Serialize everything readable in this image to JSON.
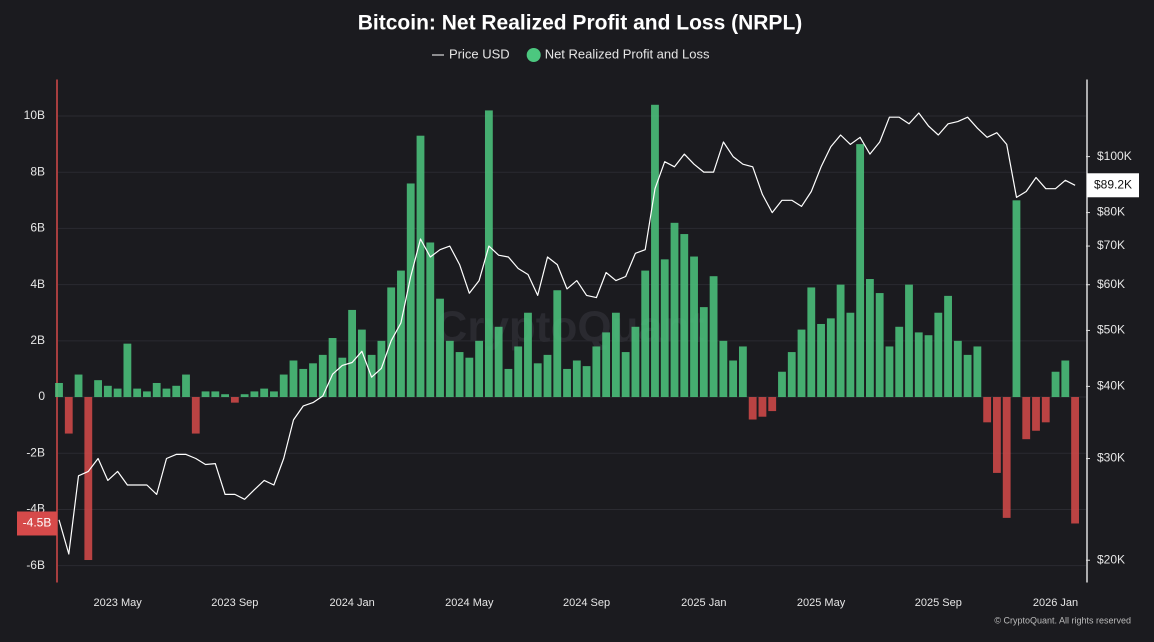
{
  "chart_data": {
    "type": "bar",
    "title": "Bitcoin: Net Realized Profit and Loss (NRPL)",
    "watermark": "CryptoQuant",
    "footer": "© CryptoQuant. All rights reserved",
    "categories": [
      null,
      null,
      null,
      null,
      null,
      null,
      "2023 May",
      null,
      null,
      null,
      null,
      null,
      null,
      null,
      null,
      null,
      null,
      null,
      "2023 Sep",
      null,
      null,
      null,
      null,
      null,
      null,
      null,
      null,
      null,
      null,
      null,
      "2024 Jan",
      null,
      null,
      null,
      null,
      null,
      null,
      null,
      null,
      null,
      null,
      null,
      "2024 May",
      null,
      null,
      null,
      null,
      null,
      null,
      null,
      null,
      null,
      null,
      null,
      "2024 Sep",
      null,
      null,
      null,
      null,
      null,
      null,
      null,
      null,
      null,
      null,
      null,
      "2025 Jan",
      null,
      null,
      null,
      null,
      null,
      null,
      null,
      null,
      null,
      null,
      null,
      "2025 May",
      null,
      null,
      null,
      null,
      null,
      null,
      null,
      null,
      null,
      null,
      null,
      "2025 Sep",
      null,
      null,
      null,
      null,
      null,
      null,
      null,
      null,
      null,
      null,
      null,
      "2026 Jan",
      null,
      null
    ],
    "series": [
      {
        "name": "Net Realized Profit and Loss",
        "type": "bar",
        "color": "#4cc77f",
        "negative_color": "#d64a4a",
        "values": [
          0.5,
          -1.3,
          0.8,
          -5.8,
          0.6,
          0.4,
          0.3,
          1.9,
          0.3,
          0.2,
          0.5,
          0.3,
          0.4,
          0.8,
          -1.3,
          0.2,
          0.2,
          0.1,
          -0.2,
          0.1,
          0.2,
          0.3,
          0.2,
          0.8,
          1.3,
          1.0,
          1.2,
          1.5,
          2.1,
          1.4,
          3.1,
          2.4,
          1.5,
          2.0,
          3.9,
          4.5,
          7.6,
          9.3,
          5.5,
          3.5,
          2.0,
          1.6,
          1.4,
          2.0,
          10.2,
          2.5,
          1.0,
          1.8,
          3.0,
          1.2,
          1.5,
          3.8,
          1.0,
          1.3,
          1.1,
          1.8,
          2.3,
          3.0,
          1.6,
          2.5,
          4.5,
          10.4,
          4.9,
          6.2,
          5.8,
          5.0,
          3.2,
          4.3,
          2.0,
          1.3,
          1.8,
          -0.8,
          -0.7,
          -0.5,
          0.9,
          1.6,
          2.4,
          3.9,
          2.6,
          2.8,
          4.0,
          3.0,
          9.0,
          4.2,
          3.7,
          1.8,
          2.5,
          4.0,
          2.3,
          2.2,
          3.0,
          3.6,
          2.0,
          1.5,
          1.8,
          -0.9,
          -2.7,
          -4.3,
          7.0,
          -1.5,
          -1.2,
          -0.9,
          0.9,
          1.3,
          -4.5
        ]
      },
      {
        "name": "Price USD",
        "type": "line",
        "axis": "y2",
        "color": "#ffffff",
        "values": [
          23500,
          20500,
          28000,
          28500,
          30000,
          27500,
          28500,
          27000,
          27000,
          27000,
          26000,
          30000,
          30500,
          30500,
          30000,
          29300,
          29400,
          26000,
          26000,
          25500,
          26500,
          27500,
          27000,
          30000,
          35000,
          37000,
          37500,
          38500,
          42000,
          43500,
          44000,
          46000,
          41500,
          43000,
          48000,
          51500,
          62000,
          72000,
          67000,
          69000,
          70000,
          65000,
          58000,
          61000,
          70000,
          67500,
          67000,
          64000,
          62500,
          57500,
          67000,
          65000,
          59000,
          61000,
          57500,
          57000,
          63000,
          61000,
          62000,
          68000,
          69000,
          88000,
          98000,
          96000,
          101000,
          97000,
          94000,
          94000,
          106000,
          100000,
          97000,
          96000,
          86000,
          80000,
          84000,
          84000,
          82000,
          87000,
          96000,
          104000,
          109000,
          105000,
          108000,
          101000,
          106000,
          117000,
          117000,
          114000,
          119000,
          113000,
          109000,
          114000,
          115000,
          117000,
          112000,
          108000,
          110000,
          105000,
          85000,
          87000,
          92000,
          88000,
          88000,
          91000,
          89200
        ]
      }
    ],
    "legend_order": [
      1,
      0
    ],
    "ylim": [
      -6.6,
      11.3
    ],
    "yticks": [
      {
        "value": -6,
        "label": "-6B"
      },
      {
        "value": -4,
        "label": "-4B"
      },
      {
        "value": -2,
        "label": "-2B"
      },
      0,
      {
        "value": 2,
        "label": "2B"
      },
      {
        "value": 4,
        "label": "4B"
      },
      {
        "value": 6,
        "label": "6B"
      },
      {
        "value": 8,
        "label": "8B"
      },
      {
        "value": 10,
        "label": "10B"
      }
    ],
    "y2lim": [
      18300,
      136000
    ],
    "y2scale": "log",
    "y2ticks": [
      {
        "value": 20000,
        "label": "$20K"
      },
      {
        "value": 30000,
        "label": "$30K"
      },
      {
        "value": 40000,
        "label": "$40K"
      },
      {
        "value": 50000,
        "label": "$50K"
      },
      {
        "value": 60000,
        "label": "$60K"
      },
      {
        "value": 70000,
        "label": "$70K"
      },
      {
        "value": 80000,
        "label": "$80K"
      },
      {
        "value": 100000,
        "label": "$100K"
      }
    ],
    "markers": {
      "y": {
        "value": -4.5,
        "label": "-4.5B"
      },
      "y2": {
        "value": 89200,
        "label": "$89.2K"
      }
    },
    "grid": true
  }
}
